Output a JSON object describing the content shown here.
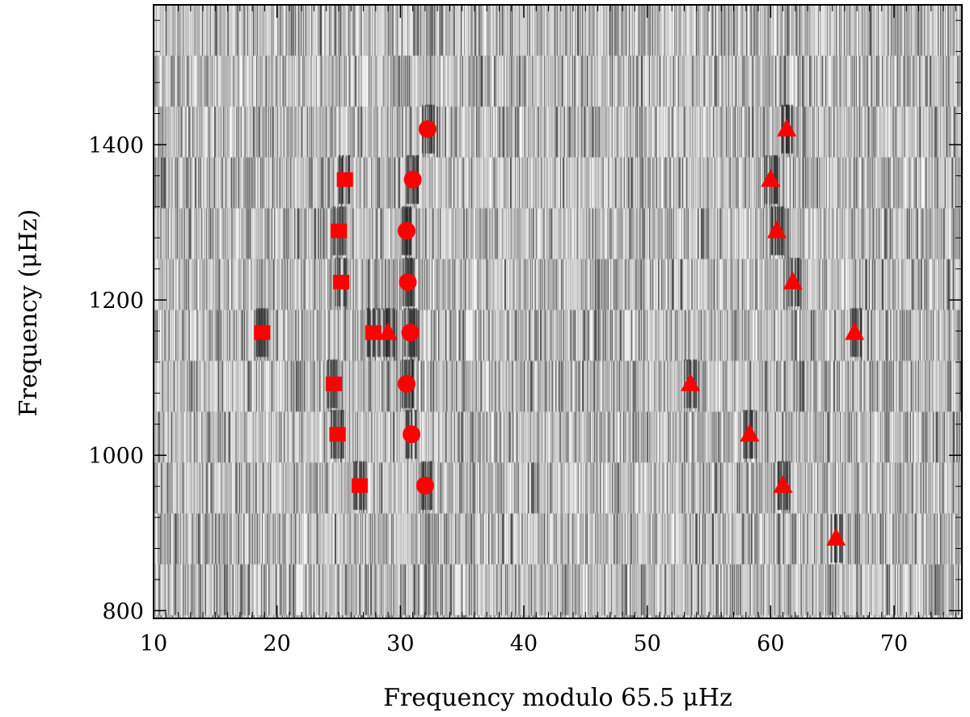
{
  "chart_data": {
    "type": "scatter",
    "title": "",
    "xlabel": "Frequency modulo 65.5 μHz",
    "ylabel": "Frequency (μHz)",
    "xlim": [
      10,
      75.5
    ],
    "ylim": [
      790,
      1580
    ],
    "x_ticks": [
      10,
      20,
      30,
      40,
      50,
      60,
      70
    ],
    "y_ticks": [
      800,
      1000,
      1200,
      1400
    ],
    "x_tick_labels": [
      "10",
      "20",
      "30",
      "40",
      "50",
      "60",
      "70"
    ],
    "y_tick_labels": [
      "800",
      "1000",
      "1200",
      "1400"
    ],
    "grid": false,
    "legend": "none",
    "background": "grayscale echelle diagram (power spectrum folded at 65.5 μHz)",
    "marker_color": "#ff0000",
    "series": [
      {
        "marker": "circle",
        "x": [
          32.2,
          31.0,
          30.5,
          30.6,
          30.8,
          30.5,
          30.9,
          32.0
        ],
        "y": [
          1420,
          1355,
          1289,
          1223,
          1158,
          1092,
          1027,
          961
        ]
      },
      {
        "marker": "square",
        "x": [
          25.5,
          25.0,
          25.2,
          18.8,
          27.8,
          24.6,
          24.9,
          26.7
        ],
        "y": [
          1355,
          1289,
          1223,
          1158,
          1158,
          1092,
          1027,
          961
        ]
      },
      {
        "marker": "triangle",
        "x": [
          61.3,
          60.0,
          60.5,
          61.8,
          29.0,
          66.8,
          53.5,
          58.3,
          61.0,
          65.3
        ],
        "y": [
          1420,
          1355,
          1289,
          1223,
          1158,
          1158,
          1092,
          1027,
          961,
          893
        ]
      }
    ]
  }
}
